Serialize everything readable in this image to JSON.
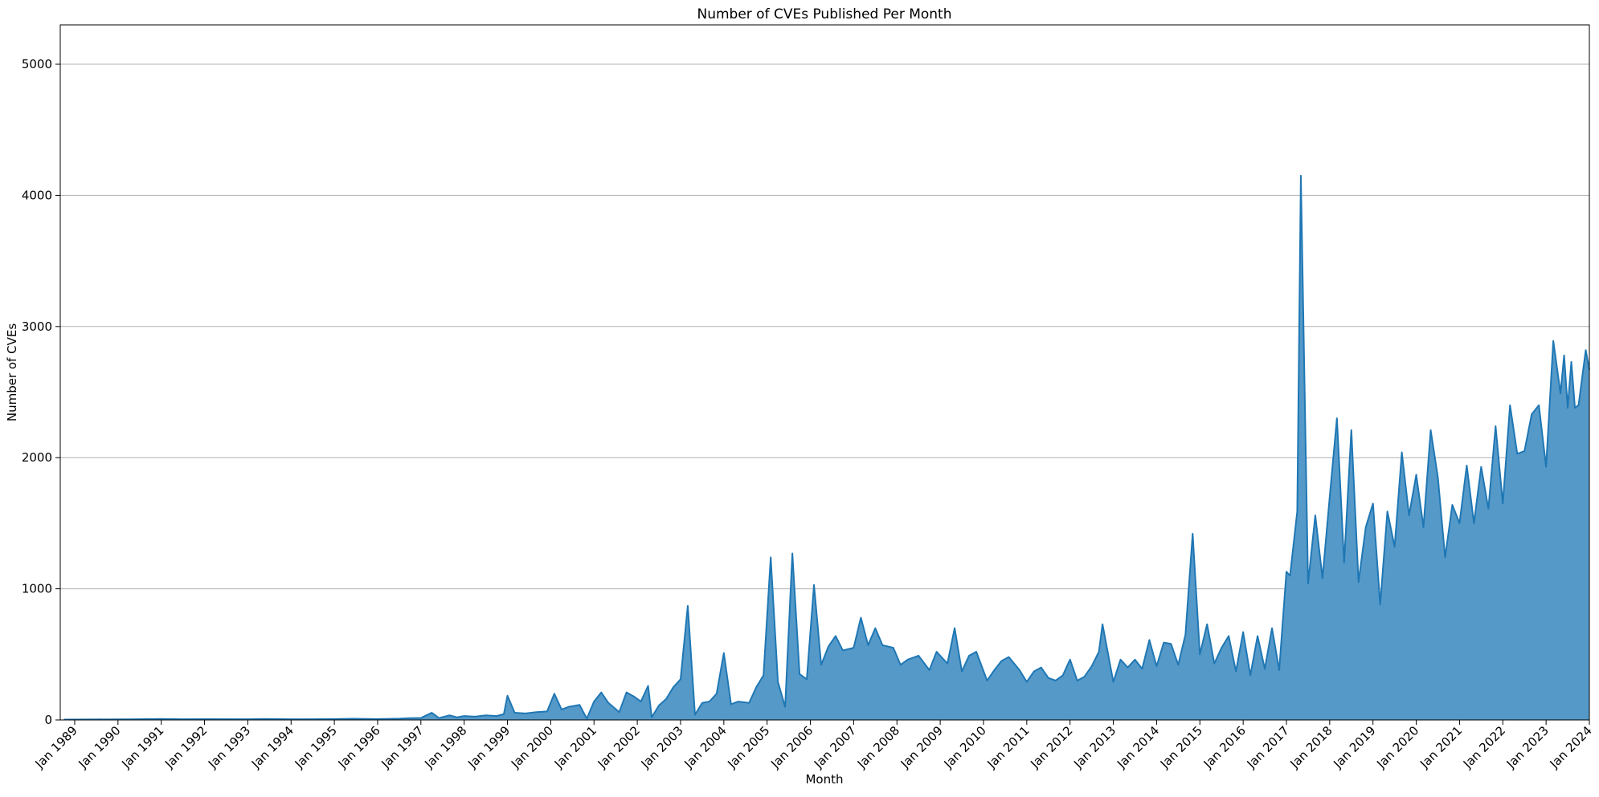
{
  "chart_data": {
    "type": "area",
    "title": "Number of CVEs Published Per Month",
    "xlabel": "Month",
    "ylabel": "Number of CVEs",
    "xlim": [
      "1988-09",
      "2024-01"
    ],
    "ylim": [
      0,
      5300
    ],
    "grid": "y-major",
    "legend": "none",
    "fill_color": "#5599c8",
    "line_color": "#1f77b4",
    "x_ticks": [
      "Jan 1989",
      "Jan 1990",
      "Jan 1991",
      "Jan 1992",
      "Jan 1993",
      "Jan 1994",
      "Jan 1995",
      "Jan 1996",
      "Jan 1997",
      "Jan 1998",
      "Jan 1999",
      "Jan 2000",
      "Jan 2001",
      "Jan 2002",
      "Jan 2003",
      "Jan 2004",
      "Jan 2005",
      "Jan 2006",
      "Jan 2007",
      "Jan 2008",
      "Jan 2009",
      "Jan 2010",
      "Jan 2011",
      "Jan 2012",
      "Jan 2013",
      "Jan 2014",
      "Jan 2015",
      "Jan 2016",
      "Jan 2017",
      "Jan 2018",
      "Jan 2019",
      "Jan 2020",
      "Jan 2021",
      "Jan 2022",
      "Jan 2023",
      "Jan 2024"
    ],
    "y_ticks": [
      0,
      1000,
      2000,
      3000,
      4000,
      5000
    ],
    "series": [
      {
        "points": [
          [
            "1988-10",
            3
          ],
          [
            "1989-06",
            4
          ],
          [
            "1990-06",
            5
          ],
          [
            "1991-01",
            8
          ],
          [
            "1991-07",
            5
          ],
          [
            "1992-01",
            6
          ],
          [
            "1993-01",
            5
          ],
          [
            "1993-06",
            8
          ],
          [
            "1994-01",
            5
          ],
          [
            "1995-01",
            7
          ],
          [
            "1995-06",
            9
          ],
          [
            "1996-01",
            7
          ],
          [
            "1996-07",
            10
          ],
          [
            "1996-10",
            14
          ],
          [
            "1997-01",
            15
          ],
          [
            "1997-04",
            55
          ],
          [
            "1997-06",
            15
          ],
          [
            "1997-09",
            35
          ],
          [
            "1997-11",
            20
          ],
          [
            "1998-01",
            30
          ],
          [
            "1998-04",
            25
          ],
          [
            "1998-07",
            35
          ],
          [
            "1998-10",
            30
          ],
          [
            "1998-12",
            45
          ],
          [
            "1999-01",
            185
          ],
          [
            "1999-03",
            55
          ],
          [
            "1999-06",
            50
          ],
          [
            "1999-09",
            60
          ],
          [
            "1999-12",
            65
          ],
          [
            "2000-02",
            200
          ],
          [
            "2000-04",
            80
          ],
          [
            "2000-06",
            100
          ],
          [
            "2000-09",
            115
          ],
          [
            "2000-11",
            10
          ],
          [
            "2001-01",
            140
          ],
          [
            "2001-03",
            210
          ],
          [
            "2001-05",
            130
          ],
          [
            "2001-08",
            60
          ],
          [
            "2001-10",
            210
          ],
          [
            "2001-12",
            180
          ],
          [
            "2002-02",
            140
          ],
          [
            "2002-04",
            260
          ],
          [
            "2002-05",
            20
          ],
          [
            "2002-07",
            110
          ],
          [
            "2002-09",
            160
          ],
          [
            "2002-11",
            250
          ],
          [
            "2003-01",
            310
          ],
          [
            "2003-03",
            870
          ],
          [
            "2003-05",
            40
          ],
          [
            "2003-07",
            130
          ],
          [
            "2003-09",
            140
          ],
          [
            "2003-11",
            200
          ],
          [
            "2004-01",
            510
          ],
          [
            "2004-03",
            120
          ],
          [
            "2004-05",
            140
          ],
          [
            "2004-08",
            130
          ],
          [
            "2004-10",
            250
          ],
          [
            "2004-12",
            340
          ],
          [
            "2005-02",
            1240
          ],
          [
            "2005-04",
            290
          ],
          [
            "2005-06",
            100
          ],
          [
            "2005-08",
            1270
          ],
          [
            "2005-10",
            350
          ],
          [
            "2005-12",
            310
          ],
          [
            "2006-02",
            1030
          ],
          [
            "2006-04",
            420
          ],
          [
            "2006-06",
            560
          ],
          [
            "2006-08",
            640
          ],
          [
            "2006-10",
            530
          ],
          [
            "2007-01",
            550
          ],
          [
            "2007-03",
            780
          ],
          [
            "2007-05",
            570
          ],
          [
            "2007-07",
            700
          ],
          [
            "2007-09",
            570
          ],
          [
            "2007-12",
            550
          ],
          [
            "2008-02",
            420
          ],
          [
            "2008-04",
            460
          ],
          [
            "2008-07",
            490
          ],
          [
            "2008-10",
            380
          ],
          [
            "2008-12",
            520
          ],
          [
            "2009-03",
            430
          ],
          [
            "2009-05",
            700
          ],
          [
            "2009-07",
            370
          ],
          [
            "2009-09",
            490
          ],
          [
            "2009-11",
            520
          ],
          [
            "2010-02",
            300
          ],
          [
            "2010-04",
            380
          ],
          [
            "2010-06",
            450
          ],
          [
            "2010-08",
            480
          ],
          [
            "2010-11",
            380
          ],
          [
            "2011-01",
            290
          ],
          [
            "2011-03",
            370
          ],
          [
            "2011-05",
            400
          ],
          [
            "2011-07",
            320
          ],
          [
            "2011-09",
            300
          ],
          [
            "2011-11",
            340
          ],
          [
            "2012-01",
            460
          ],
          [
            "2012-03",
            300
          ],
          [
            "2012-05",
            330
          ],
          [
            "2012-07",
            410
          ],
          [
            "2012-09",
            520
          ],
          [
            "2012-10",
            730
          ],
          [
            "2013-01",
            290
          ],
          [
            "2013-03",
            460
          ],
          [
            "2013-05",
            400
          ],
          [
            "2013-07",
            460
          ],
          [
            "2013-09",
            390
          ],
          [
            "2013-11",
            610
          ],
          [
            "2014-01",
            410
          ],
          [
            "2014-03",
            590
          ],
          [
            "2014-05",
            580
          ],
          [
            "2014-07",
            420
          ],
          [
            "2014-09",
            650
          ],
          [
            "2014-11",
            1420
          ],
          [
            "2015-01",
            500
          ],
          [
            "2015-03",
            730
          ],
          [
            "2015-05",
            430
          ],
          [
            "2015-07",
            550
          ],
          [
            "2015-09",
            640
          ],
          [
            "2015-11",
            370
          ],
          [
            "2016-01",
            670
          ],
          [
            "2016-03",
            340
          ],
          [
            "2016-05",
            640
          ],
          [
            "2016-07",
            390
          ],
          [
            "2016-09",
            700
          ],
          [
            "2016-11",
            380
          ],
          [
            "2017-01",
            1130
          ],
          [
            "2017-02",
            1100
          ],
          [
            "2017-04",
            1590
          ],
          [
            "2017-05",
            4150
          ],
          [
            "2017-07",
            1040
          ],
          [
            "2017-09",
            1560
          ],
          [
            "2017-11",
            1080
          ],
          [
            "2018-01",
            1700
          ],
          [
            "2018-03",
            2300
          ],
          [
            "2018-05",
            1200
          ],
          [
            "2018-07",
            2210
          ],
          [
            "2018-09",
            1050
          ],
          [
            "2018-11",
            1470
          ],
          [
            "2019-01",
            1650
          ],
          [
            "2019-03",
            880
          ],
          [
            "2019-05",
            1590
          ],
          [
            "2019-07",
            1320
          ],
          [
            "2019-09",
            2040
          ],
          [
            "2019-11",
            1560
          ],
          [
            "2020-01",
            1870
          ],
          [
            "2020-03",
            1470
          ],
          [
            "2020-05",
            2210
          ],
          [
            "2020-07",
            1850
          ],
          [
            "2020-09",
            1240
          ],
          [
            "2020-11",
            1640
          ],
          [
            "2021-01",
            1500
          ],
          [
            "2021-03",
            1940
          ],
          [
            "2021-05",
            1500
          ],
          [
            "2021-07",
            1930
          ],
          [
            "2021-09",
            1610
          ],
          [
            "2021-11",
            2240
          ],
          [
            "2022-01",
            1650
          ],
          [
            "2022-03",
            2400
          ],
          [
            "2022-05",
            2030
          ],
          [
            "2022-07",
            2050
          ],
          [
            "2022-09",
            2330
          ],
          [
            "2022-11",
            2400
          ],
          [
            "2023-01",
            1930
          ],
          [
            "2023-03",
            2890
          ],
          [
            "2023-05",
            2490
          ],
          [
            "2023-06",
            2780
          ],
          [
            "2023-07",
            2380
          ],
          [
            "2023-08",
            2730
          ],
          [
            "2023-09",
            2380
          ],
          [
            "2023-10",
            2400
          ],
          [
            "2023-12",
            2820
          ],
          [
            "2024-01",
            2670
          ]
        ]
      }
    ]
  }
}
